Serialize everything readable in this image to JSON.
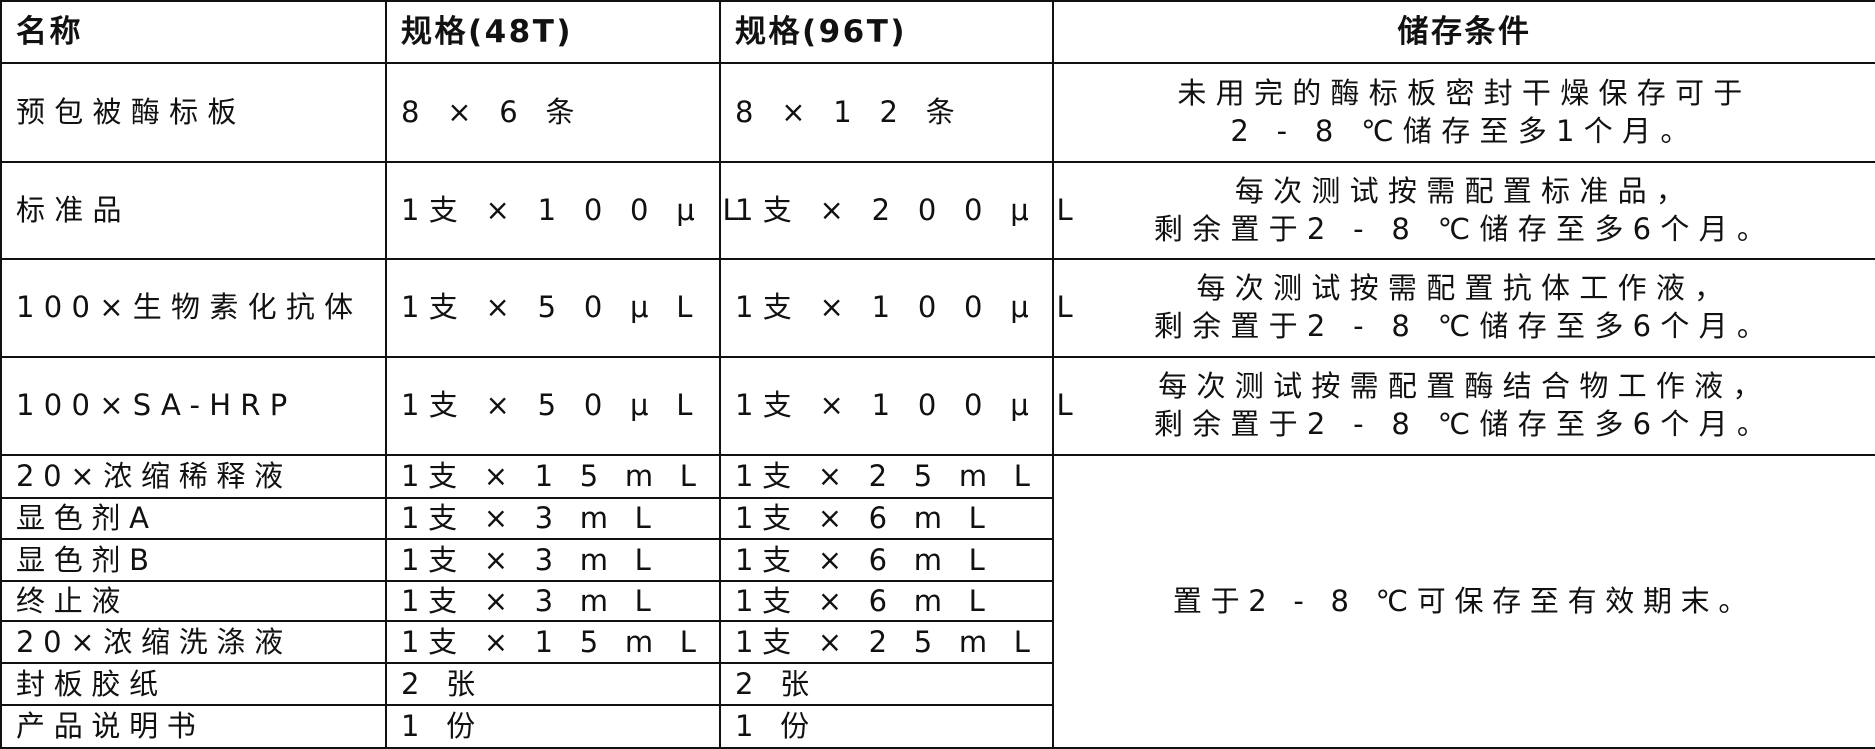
{
  "header": [
    "名称",
    "规格(48T)",
    "规格(96T)",
    "储存条件"
  ],
  "rows": [
    {
      "name": "预包被酶标板",
      "spec48": "8 × 6 条",
      "spec96": "8 × 1 2 条",
      "storage": [
        "未用完的酶标板密封干燥保存可于",
        "2 - 8 ℃储存至多1个月。"
      ]
    },
    {
      "name": "标准品",
      "spec48": "1支 × 1 0 0 μ L",
      "spec96": "1支 × 2 0 0 μ L",
      "storage": [
        "每次测试按需配置标准品，",
        "剩余置于2 - 8 ℃储存至多6个月。"
      ]
    },
    {
      "name": "100×生物素化抗体",
      "spec48": "1支 × 5 0 μ L",
      "spec96": "1支 × 1 0 0 μ L",
      "storage": [
        "每次测试按需配置抗体工作液，",
        "剩余置于2 - 8 ℃储存至多6个月。"
      ]
    },
    {
      "name": "100×SA-HRP",
      "spec48": "1支 × 5 0 μ L",
      "spec96": "1支 × 1 0 0 μ L",
      "storage": [
        "每次测试按需配置酶结合物工作液，",
        "剩余置于2 - 8 ℃储存至多6个月。"
      ]
    },
    {
      "name": "20×浓缩稀释液",
      "spec48": "1支 × 1 5 m L",
      "spec96": "1支 × 2 5 m L"
    },
    {
      "name": "显色剂A",
      "spec48": "1支 × 3 m L",
      "spec96": "1支 × 6 m L"
    },
    {
      "name": "显色剂B",
      "spec48": "1支 × 3 m L",
      "spec96": "1支 × 6 m L"
    },
    {
      "name": "终止液",
      "spec48": "1支 × 3 m L",
      "spec96": "1支 × 6 m L"
    },
    {
      "name": "20×浓缩洗涤液",
      "spec48": "1支 × 1 5 m L",
      "spec96": "1支 × 2 5 m L"
    },
    {
      "name": "封板胶纸",
      "spec48": "2 张",
      "spec96": "2 张"
    },
    {
      "name": "产品说明书",
      "spec48": "1 份",
      "spec96": "1 份"
    }
  ],
  "merged_storage": "置于2 - 8 ℃可保存至有效期末。"
}
